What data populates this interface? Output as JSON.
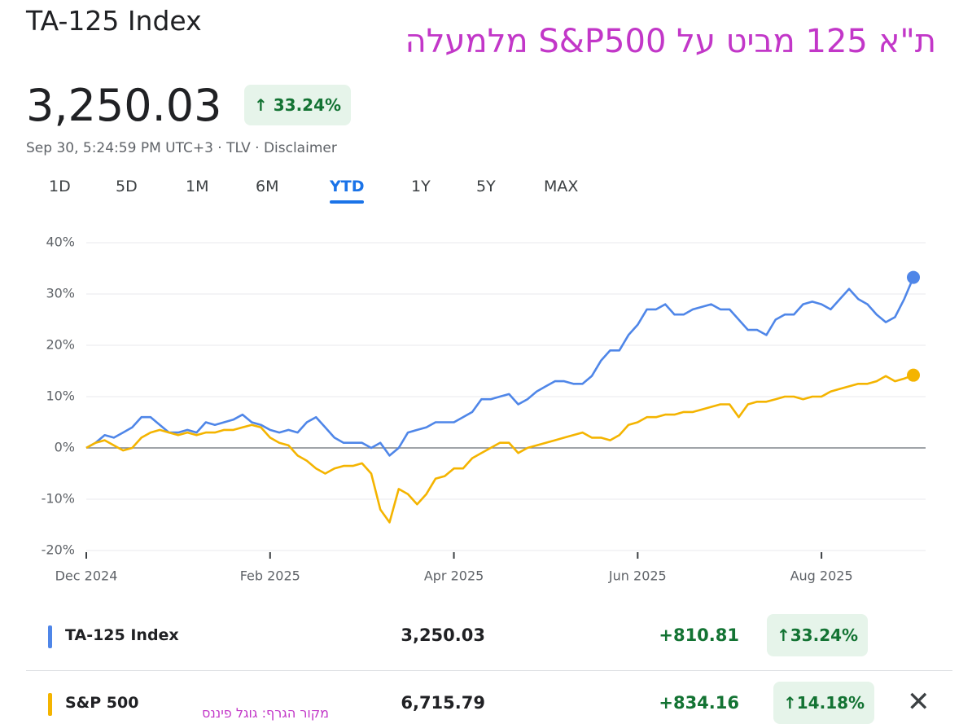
{
  "header": {
    "title": "TA-125 Index",
    "annotation": "ת\"א 125 מביט על S&P500 מלמעלה",
    "price": "3,250.03",
    "change_pct": "33.24%",
    "timestamp": "Sep 30, 5:24:59 PM UTC+3 · TLV · Disclaimer",
    "tabs": [
      "1D",
      "5D",
      "1M",
      "6M",
      "YTD",
      "1Y",
      "5Y",
      "MAX"
    ],
    "active_tab": "YTD"
  },
  "chart_data": {
    "type": "line",
    "categories": [
      "Dec 2024",
      null,
      null,
      null,
      null,
      null,
      null,
      null,
      null,
      null,
      null,
      null,
      null,
      null,
      null,
      null,
      null,
      null,
      null,
      null,
      "Feb 2025",
      null,
      null,
      null,
      null,
      null,
      null,
      null,
      null,
      null,
      null,
      null,
      null,
      null,
      null,
      null,
      null,
      null,
      null,
      null,
      "Apr 2025",
      null,
      null,
      null,
      null,
      null,
      null,
      null,
      null,
      null,
      null,
      null,
      null,
      null,
      null,
      null,
      null,
      null,
      null,
      null,
      "Jun 2025",
      null,
      null,
      null,
      null,
      null,
      null,
      null,
      null,
      null,
      null,
      null,
      null,
      null,
      null,
      null,
      null,
      null,
      null,
      null,
      "Aug 2025",
      null,
      null,
      null,
      null,
      null,
      null,
      null,
      null,
      null,
      null
    ],
    "series": [
      {
        "name": "TA-125 Index",
        "color": "#4f86e8",
        "values": [
          0,
          1,
          2.5,
          2,
          3,
          4,
          6,
          6,
          4.5,
          3,
          3,
          3.5,
          3,
          5,
          4.5,
          5,
          5.5,
          6.5,
          5,
          4.5,
          3.5,
          3,
          3.5,
          3,
          5,
          6,
          4,
          2,
          1,
          1,
          1,
          0,
          1,
          -1.5,
          0,
          3,
          3.5,
          4,
          5,
          5,
          5,
          6,
          7,
          9.5,
          9.5,
          10,
          10.5,
          8.5,
          9.5,
          11,
          12,
          13,
          13,
          12.5,
          12.5,
          14,
          17,
          19,
          19,
          22,
          24,
          27,
          27,
          28,
          26,
          26,
          27,
          27.5,
          28,
          27,
          27,
          25,
          23,
          23,
          22,
          25,
          26,
          26,
          28,
          28.5,
          28,
          27,
          29,
          31,
          29,
          28,
          26,
          24.5,
          25.5,
          29,
          33.24
        ]
      },
      {
        "name": "S&P 500",
        "color": "#f4b400",
        "values": [
          0,
          1,
          1.5,
          0.5,
          -0.5,
          0,
          2,
          3,
          3.5,
          3,
          2.5,
          3,
          2.5,
          3,
          3,
          3.5,
          3.5,
          4,
          4.5,
          4,
          2,
          1,
          0.5,
          -1.5,
          -2.5,
          -4,
          -5,
          -4,
          -3.5,
          -3.5,
          -3,
          -5,
          -12,
          -14.5,
          -8,
          -9,
          -11,
          -9,
          -6,
          -5.5,
          -4,
          -4,
          -2,
          -1,
          0,
          1,
          1,
          -1,
          0,
          0.5,
          1,
          1.5,
          2,
          2.5,
          3,
          2,
          2,
          1.5,
          2.5,
          4.5,
          5,
          6,
          6,
          6.5,
          6.5,
          7,
          7,
          7.5,
          8,
          8.5,
          8.5,
          6,
          8.5,
          9,
          9,
          9.5,
          10,
          10,
          9.5,
          10,
          10,
          11,
          11.5,
          12,
          12.5,
          12.5,
          13,
          14,
          13,
          13.5,
          14.18
        ]
      }
    ],
    "ylim": [
      -20,
      40
    ],
    "yticks": [
      {
        "value": -20,
        "label": "-20%"
      },
      {
        "value": -10,
        "label": "-10%"
      },
      {
        "value": 0,
        "label": "0%"
      },
      {
        "value": 10,
        "label": "10%"
      },
      {
        "value": 20,
        "label": "20%"
      },
      {
        "value": 30,
        "label": "30%"
      },
      {
        "value": 40,
        "label": "40%"
      }
    ],
    "grid": true
  },
  "legend_rows": [
    {
      "price": "3,250.03",
      "change": "+810.81",
      "change_pct": "33.24%"
    },
    {
      "price": "6,715.79",
      "change": "+834.16",
      "change_pct": "14.18%"
    }
  ],
  "source": "מקור הגרף: גוגל פיננס"
}
